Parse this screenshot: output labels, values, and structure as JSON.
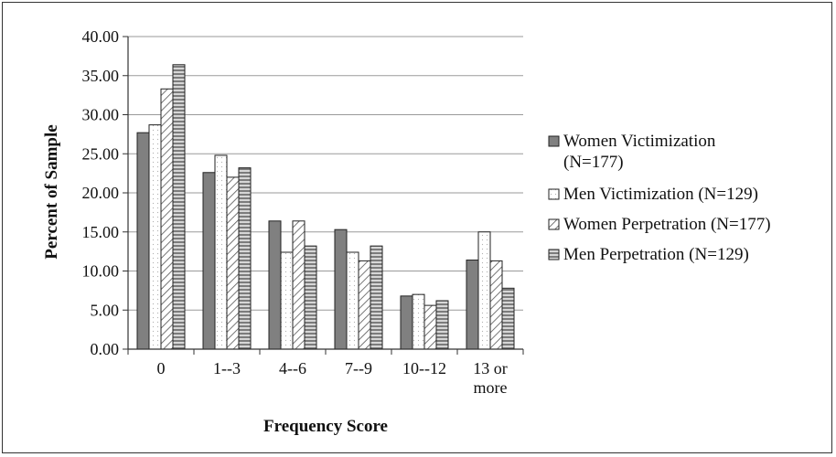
{
  "chart_data": {
    "type": "bar",
    "title": "",
    "xlabel": "Frequency Score",
    "ylabel": "Percent of Sample",
    "ylim": [
      0,
      40
    ],
    "ytick_step": 5,
    "ytick_labels": [
      "0.00",
      "5.00",
      "10.00",
      "15.00",
      "20.00",
      "25.00",
      "30.00",
      "35.00",
      "40.00"
    ],
    "grid": true,
    "legend_position": "right",
    "categories": [
      [
        "0"
      ],
      [
        "1--3"
      ],
      [
        "4--6"
      ],
      [
        "7--9"
      ],
      [
        "10--12"
      ],
      [
        "13 or",
        "more"
      ]
    ],
    "series": [
      {
        "name_lines": [
          "Women Victimization",
          "(N=177)"
        ],
        "pattern": "solid-gray",
        "color": "#808080",
        "values": [
          27.7,
          22.6,
          16.4,
          15.3,
          6.8,
          11.4
        ]
      },
      {
        "name_lines": [
          "Men Victimization (N=129)"
        ],
        "pattern": "dotted-white",
        "color": "#ffffff",
        "values": [
          28.7,
          24.8,
          12.4,
          12.4,
          7.0,
          15.0
        ]
      },
      {
        "name_lines": [
          "Women Perpetration (N=177)"
        ],
        "pattern": "diagonal-hatch",
        "color": "#ffffff",
        "values": [
          33.3,
          22.0,
          16.4,
          11.3,
          5.6,
          11.3
        ]
      },
      {
        "name_lines": [
          "Men Perpetration (N=129)"
        ],
        "pattern": "horizontal-stripes",
        "color": "#9a9a9a",
        "values": [
          36.4,
          23.2,
          13.2,
          13.2,
          6.2,
          7.8
        ]
      }
    ]
  }
}
